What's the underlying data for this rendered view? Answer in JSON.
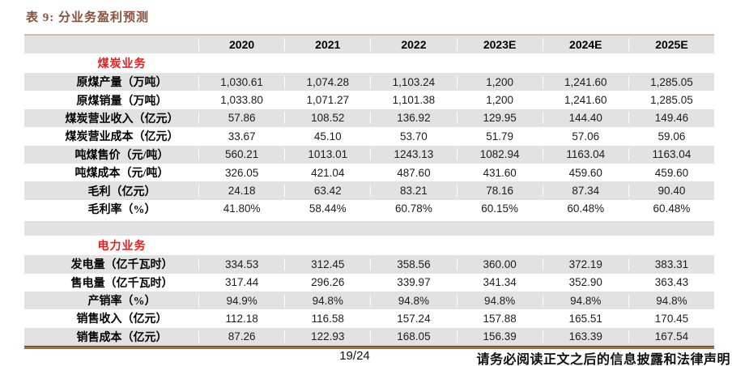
{
  "title": "表 9: 分业务盈利预测",
  "colors": {
    "title_brown": "#8a5138",
    "rule_top": "#d9bba5",
    "rule_bottom_dark": "#5d4430",
    "rule_bottom": "#9a6e4b",
    "section_red": "#f91713",
    "row_gray": "#e2e2e2",
    "text": "#1c1c1c"
  },
  "table": {
    "columns": [
      "",
      "2020",
      "2021",
      "2022",
      "2023E",
      "2024E",
      "2025E"
    ],
    "rows": [
      {
        "type": "section",
        "label": "煤炭业务",
        "values": [
          "",
          "",
          "",
          "",
          "",
          ""
        ]
      },
      {
        "type": "data",
        "bg": "gray",
        "label": "原煤产量（万吨）",
        "values": [
          "1,030.61",
          "1,074.28",
          "1,103.24",
          "1,200",
          "1,241.60",
          "1,285.05"
        ]
      },
      {
        "type": "data",
        "bg": "white",
        "label": "原煤销量（万吨）",
        "values": [
          "1,033.80",
          "1,071.27",
          "1,101.38",
          "1,200",
          "1,241.60",
          "1,285.05"
        ]
      },
      {
        "type": "data",
        "bg": "gray",
        "label": "煤炭营业收入（亿元）",
        "values": [
          "57.86",
          "108.52",
          "136.92",
          "129.95",
          "144.40",
          "149.46"
        ]
      },
      {
        "type": "data",
        "bg": "white",
        "label": "煤炭营业成本（亿元）",
        "values": [
          "33.67",
          "45.10",
          "53.70",
          "51.79",
          "57.06",
          "59.06"
        ]
      },
      {
        "type": "data",
        "bg": "gray",
        "label": "吨煤售价（元/吨）",
        "values": [
          "560.21",
          "1013.01",
          "1243.13",
          "1082.94",
          "1163.04",
          "1163.04"
        ]
      },
      {
        "type": "data",
        "bg": "white",
        "label": "吨煤成本（元/吨）",
        "values": [
          "326.05",
          "421.04",
          "487.60",
          "431.60",
          "459.60",
          "459.60"
        ]
      },
      {
        "type": "data",
        "bg": "gray",
        "label": "毛利（亿元）",
        "values": [
          "24.18",
          "63.42",
          "83.21",
          "78.16",
          "87.34",
          "90.40"
        ]
      },
      {
        "type": "data",
        "bg": "white",
        "label": "毛利率（%）",
        "values": [
          "41.80%",
          "58.44%",
          "60.78%",
          "60.15%",
          "60.48%",
          "60.48%"
        ]
      },
      {
        "type": "spacer",
        "label": "",
        "values": [
          "",
          "",
          "",
          "",
          "",
          ""
        ]
      },
      {
        "type": "section",
        "label": "电力业务",
        "values": [
          "",
          "",
          "",
          "",
          "",
          ""
        ]
      },
      {
        "type": "data",
        "bg": "gray",
        "label": "发电量（亿千瓦时）",
        "values": [
          "334.53",
          "312.45",
          "358.56",
          "360.00",
          "372.19",
          "383.31"
        ]
      },
      {
        "type": "data",
        "bg": "white",
        "label": "售电量（亿千瓦时）",
        "values": [
          "317.44",
          "296.26",
          "339.97",
          "341.34",
          "352.90",
          "363.43"
        ]
      },
      {
        "type": "data",
        "bg": "gray",
        "label": "产销率（%）",
        "values": [
          "94.9%",
          "94.8%",
          "94.8%",
          "94.8%",
          "94.8%",
          "94.8%"
        ]
      },
      {
        "type": "data",
        "bg": "white",
        "label": "销售收入（亿元）",
        "values": [
          "112.18",
          "116.58",
          "157.24",
          "157.88",
          "165.51",
          "170.45"
        ]
      },
      {
        "type": "data",
        "bg": "gray",
        "label": "销售成本（亿元）",
        "values": [
          "87.26",
          "122.93",
          "168.05",
          "156.39",
          "163.39",
          "167.54"
        ]
      }
    ]
  },
  "footer": {
    "page": "19/24",
    "disclaimer": "请务必阅读正文之后的信息披露和法律声明"
  }
}
